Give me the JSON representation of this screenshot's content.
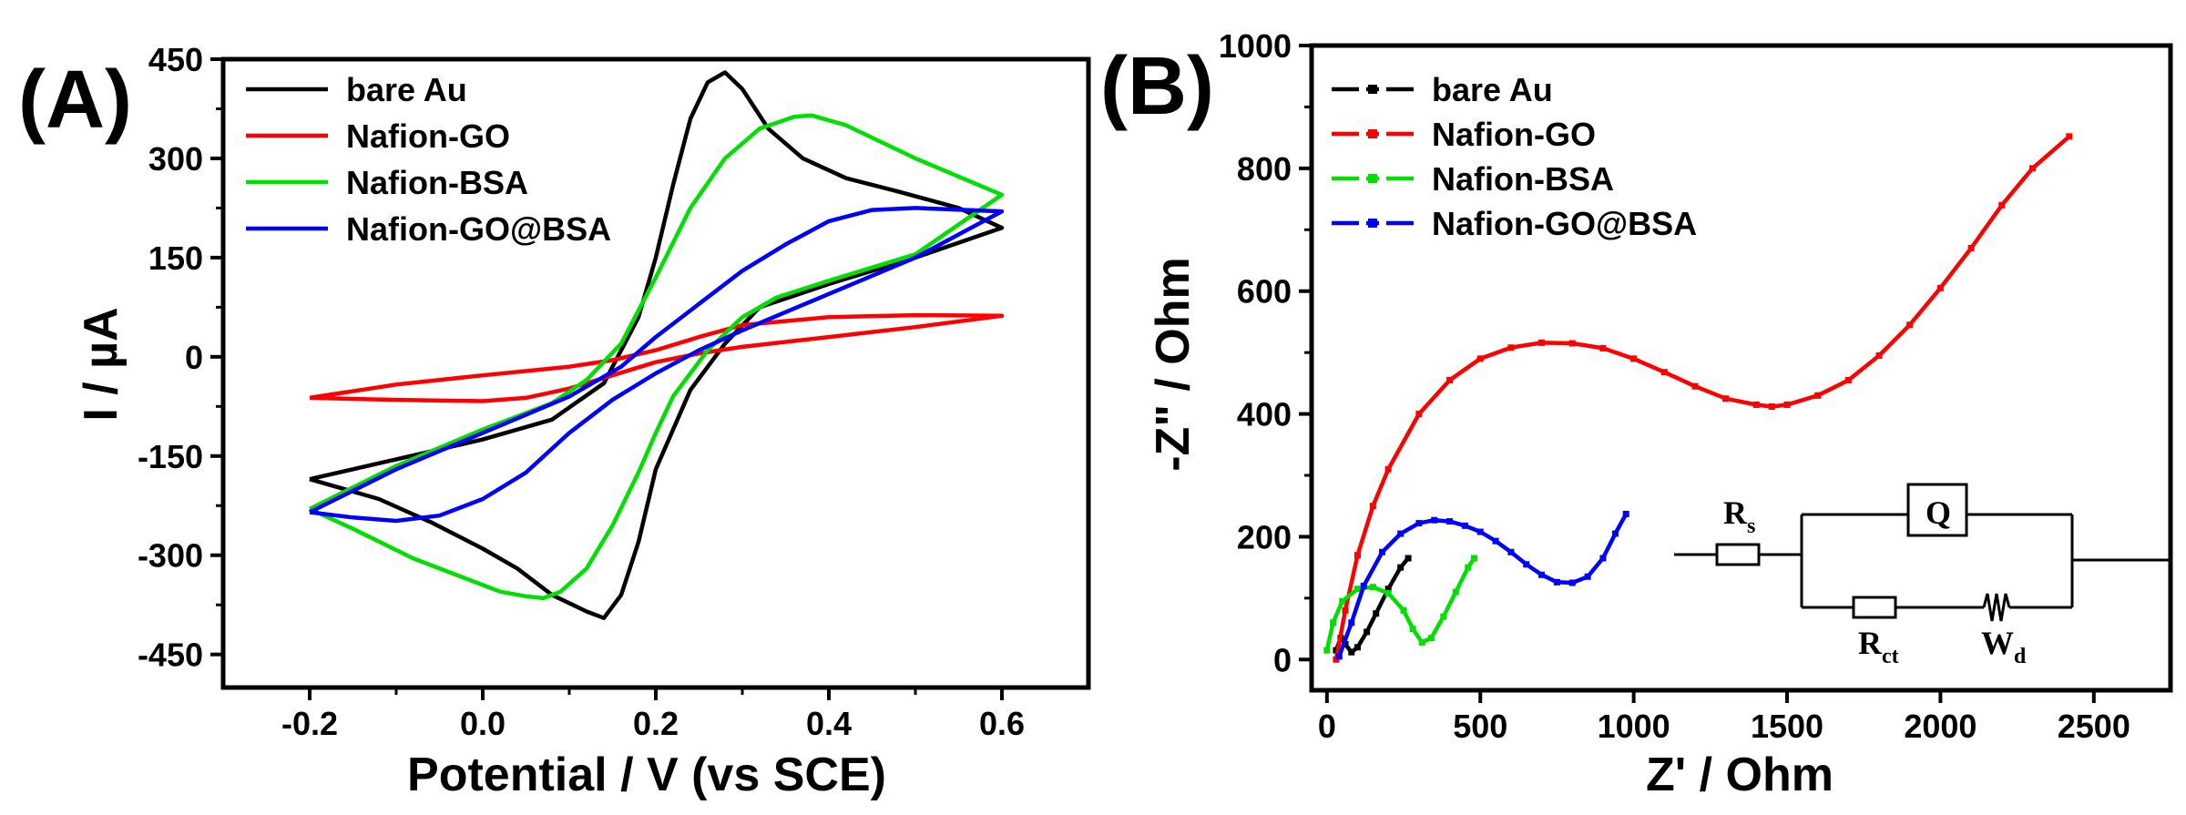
{
  "colors": {
    "bare_au": "#000000",
    "nafion_go": "#ff0000",
    "nafion_bsa": "#00e000",
    "nafion_go_bsa": "#0000ff",
    "axis": "#000000"
  },
  "chart_data": [
    {
      "panel_label": "(A)",
      "type": "line",
      "title": "",
      "xlabel": "Potential / V (vs SCE)",
      "ylabel": "I / µA",
      "xlim": [
        -0.3,
        0.7
      ],
      "ylim": [
        -500,
        450
      ],
      "xticks": [
        -0.2,
        0.0,
        0.2,
        0.4,
        0.6
      ],
      "xtick_labels": [
        "-0.2",
        "0.0",
        "0.2",
        "0.4",
        "0.6"
      ],
      "yticks": [
        -450,
        -300,
        -150,
        0,
        150,
        300,
        450
      ],
      "ytick_labels": [
        "-450",
        "-300",
        "-150",
        "0",
        "150",
        "300",
        "450"
      ],
      "legend_position": "top-left",
      "series": [
        {
          "name": "bare Au",
          "color_key": "bare_au",
          "x": [
            -0.2,
            -0.1,
            0.0,
            0.08,
            0.14,
            0.18,
            0.2,
            0.22,
            0.24,
            0.26,
            0.28,
            0.3,
            0.33,
            0.37,
            0.42,
            0.48,
            0.55,
            0.6,
            0.5,
            0.4,
            0.32,
            0.28,
            0.24,
            0.2,
            0.18,
            0.16,
            0.14,
            0.12,
            0.08,
            0.04,
            0.0,
            -0.06,
            -0.12,
            -0.2
          ],
          "y": [
            -185,
            -155,
            -125,
            -95,
            -40,
            60,
            150,
            260,
            360,
            415,
            430,
            405,
            345,
            300,
            270,
            250,
            225,
            195,
            150,
            110,
            75,
            20,
            -50,
            -170,
            -280,
            -360,
            -395,
            -385,
            -360,
            -320,
            -290,
            -250,
            -215,
            -185
          ]
        },
        {
          "name": "Nafion-GO",
          "color_key": "nafion_go",
          "x": [
            -0.2,
            -0.1,
            0.0,
            0.1,
            0.15,
            0.2,
            0.25,
            0.3,
            0.4,
            0.5,
            0.6,
            0.5,
            0.4,
            0.3,
            0.25,
            0.2,
            0.15,
            0.1,
            0.05,
            0.0,
            -0.1,
            -0.2
          ],
          "y": [
            -62,
            -42,
            -28,
            -15,
            -5,
            10,
            30,
            48,
            60,
            63,
            62,
            45,
            30,
            15,
            5,
            -8,
            -28,
            -48,
            -62,
            -67,
            -65,
            -62
          ]
        },
        {
          "name": "Nafion-BSA",
          "color_key": "nafion_bsa",
          "x": [
            -0.2,
            -0.1,
            0.0,
            0.08,
            0.12,
            0.16,
            0.2,
            0.24,
            0.28,
            0.32,
            0.36,
            0.38,
            0.42,
            0.5,
            0.6,
            0.5,
            0.4,
            0.34,
            0.3,
            0.26,
            0.22,
            0.2,
            0.18,
            0.15,
            0.12,
            0.09,
            0.07,
            0.05,
            0.02,
            0.0,
            -0.08,
            -0.15,
            -0.2
          ],
          "y": [
            -230,
            -165,
            -110,
            -70,
            -35,
            20,
            120,
            225,
            300,
            345,
            363,
            365,
            350,
            300,
            245,
            155,
            115,
            90,
            60,
            10,
            -60,
            -115,
            -175,
            -255,
            -320,
            -355,
            -365,
            -362,
            -355,
            -345,
            -305,
            -260,
            -230
          ]
        },
        {
          "name": "Nafion-GO@BSA",
          "color_key": "nafion_go_bsa",
          "x": [
            -0.2,
            -0.1,
            0.0,
            0.1,
            0.16,
            0.2,
            0.25,
            0.3,
            0.35,
            0.4,
            0.45,
            0.5,
            0.6,
            0.5,
            0.4,
            0.3,
            0.25,
            0.2,
            0.15,
            0.1,
            0.05,
            0.0,
            -0.05,
            -0.1,
            -0.15,
            -0.2
          ],
          "y": [
            -235,
            -170,
            -115,
            -60,
            -15,
            30,
            80,
            130,
            170,
            205,
            222,
            225,
            220,
            150,
            95,
            40,
            10,
            -25,
            -65,
            -115,
            -175,
            -215,
            -240,
            -248,
            -243,
            -235
          ]
        }
      ]
    },
    {
      "panel_label": "(B)",
      "type": "line",
      "title": "",
      "xlabel": "Z' / Ohm",
      "ylabel": "-Z\" / Ohm",
      "xlim": [
        -50,
        2750
      ],
      "ylim": [
        -50,
        1000
      ],
      "xticks": [
        0,
        500,
        1000,
        1500,
        2000,
        2500
      ],
      "xtick_labels": [
        "0",
        "500",
        "1000",
        "1500",
        "2000",
        "2500"
      ],
      "yticks": [
        0,
        200,
        400,
        600,
        800,
        1000
      ],
      "ytick_labels": [
        "0",
        "200",
        "400",
        "600",
        "800",
        "1000"
      ],
      "legend_position": "top-left",
      "series": [
        {
          "name": "bare Au",
          "color_key": "bare_au",
          "marker": "diamond",
          "x": [
            30,
            45,
            60,
            80,
            100,
            130,
            160,
            200,
            240,
            265
          ],
          "y": [
            15,
            35,
            25,
            12,
            20,
            45,
            75,
            115,
            150,
            165
          ]
        },
        {
          "name": "Nafion-GO",
          "color_key": "nafion_go",
          "marker": "square",
          "x": [
            30,
            60,
            100,
            150,
            200,
            300,
            400,
            500,
            600,
            700,
            800,
            900,
            1000,
            1100,
            1200,
            1300,
            1400,
            1450,
            1500,
            1600,
            1700,
            1800,
            1900,
            2000,
            2100,
            2200,
            2300,
            2420
          ],
          "y": [
            0,
            80,
            170,
            250,
            310,
            400,
            455,
            490,
            508,
            516,
            515,
            507,
            490,
            468,
            445,
            425,
            415,
            412,
            415,
            430,
            455,
            495,
            545,
            605,
            670,
            740,
            800,
            852
          ]
        },
        {
          "name": "Nafion-BSA",
          "color_key": "nafion_bsa",
          "marker": "triangle-down",
          "x": [
            0,
            20,
            50,
            100,
            150,
            200,
            250,
            280,
            310,
            340,
            380,
            420,
            460,
            480
          ],
          "y": [
            15,
            60,
            95,
            115,
            118,
            108,
            80,
            50,
            28,
            35,
            70,
            110,
            150,
            165
          ]
        },
        {
          "name": "Nafion-GO@BSA",
          "color_key": "nafion_go_bsa",
          "marker": "triangle-up",
          "x": [
            40,
            80,
            120,
            180,
            240,
            300,
            350,
            400,
            450,
            500,
            550,
            600,
            650,
            700,
            750,
            800,
            850,
            900,
            940,
            975
          ],
          "y": [
            5,
            60,
            120,
            175,
            205,
            222,
            227,
            225,
            218,
            208,
            193,
            175,
            155,
            138,
            126,
            125,
            135,
            165,
            205,
            237
          ]
        }
      ]
    }
  ],
  "circuit": {
    "rs_label": "R",
    "rs_sub": "s",
    "q_label": "Q",
    "rct_label": "R",
    "rct_sub": "ct",
    "wd_label": "W",
    "wd_sub": "d"
  }
}
